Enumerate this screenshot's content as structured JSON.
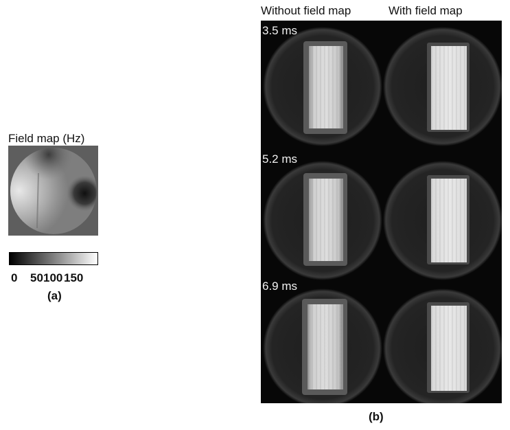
{
  "panel_a": {
    "title": "Field map (Hz)",
    "colorbar_ticks": [
      {
        "label": "0",
        "value": 0
      },
      {
        "label": "50",
        "value": 50
      },
      {
        "label": "100",
        "value": 100
      },
      {
        "label": "150",
        "value": 150
      }
    ],
    "label": "(a)"
  },
  "panel_b": {
    "columns": [
      "Without field map",
      "With field map"
    ],
    "rows": [
      "3.5 ms",
      "5.2 ms",
      "6.9 ms"
    ],
    "label": "(b)"
  },
  "colors": {
    "background": "#ffffff",
    "image_bg": "#070707",
    "phantom_bright": "#e6e6e6"
  }
}
